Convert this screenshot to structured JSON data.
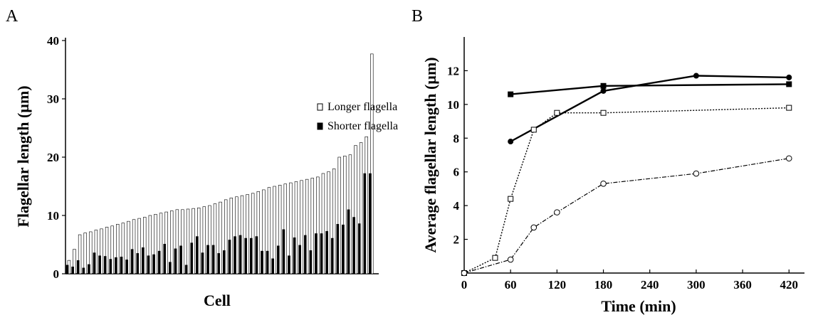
{
  "panels": [
    {
      "letter": "A",
      "chart_data": {
        "type": "bar",
        "xlabel": "Cell",
        "ylabel": "Flagellar length (µm)",
        "ylim": [
          0,
          40
        ],
        "yticks": [
          "0",
          "10",
          "20",
          "30",
          "40"
        ],
        "legend_position": "top-right",
        "series": [
          {
            "name": "Longer flagella",
            "fill": "#ffffff",
            "values": [
              2.3,
              4.2,
              6.7,
              7.0,
              7.2,
              7.5,
              7.7,
              8.0,
              8.2,
              8.5,
              8.7,
              9.0,
              9.3,
              9.5,
              9.7,
              10.0,
              10.2,
              10.4,
              10.6,
              10.8,
              11.0,
              11.0,
              11.1,
              11.2,
              11.3,
              11.5,
              11.7,
              12.0,
              12.3,
              12.7,
              13.0,
              13.2,
              13.4,
              13.6,
              13.8,
              14.1,
              14.4,
              14.8,
              15.0,
              15.2,
              15.4,
              15.6,
              15.8,
              16.0,
              16.2,
              16.4,
              16.6,
              17.2,
              17.5,
              18.0,
              20.0,
              20.2,
              20.4,
              22.0,
              22.5,
              23.5,
              37.7
            ]
          },
          {
            "name": "Shorter flagella",
            "fill": "#000000",
            "values": [
              1.5,
              1.2,
              2.3,
              1.0,
              1.6,
              3.6,
              3.1,
              3.0,
              2.5,
              2.8,
              2.9,
              2.4,
              4.2,
              3.5,
              4.5,
              3.1,
              3.3,
              3.9,
              5.1,
              2.0,
              4.3,
              4.8,
              1.5,
              5.3,
              6.4,
              3.6,
              4.9,
              4.9,
              3.5,
              4.0,
              5.8,
              6.4,
              6.6,
              6.1,
              6.1,
              6.4,
              3.9,
              3.9,
              2.6,
              4.8,
              7.6,
              3.1,
              6.2,
              4.9,
              6.6,
              4.0,
              6.9,
              6.9,
              7.3,
              6.1,
              8.5,
              8.4,
              11.0,
              9.7,
              8.6,
              17.2,
              17.2
            ]
          }
        ]
      }
    },
    {
      "letter": "B",
      "chart_data": {
        "type": "line",
        "xlabel": "Time (min)",
        "ylabel": "Average flagellar length (µm)",
        "xlim": [
          0,
          440
        ],
        "ylim": [
          0,
          14
        ],
        "xticks": [
          "0",
          "60",
          "120",
          "180",
          "240",
          "300",
          "360",
          "420"
        ],
        "yticks": [
          "2",
          "4",
          "6",
          "8",
          "10",
          "12"
        ],
        "series": [
          {
            "marker": "filled-square",
            "line": "solid-thick",
            "x": [
              60,
              180,
              420
            ],
            "y": [
              10.6,
              11.1,
              11.2
            ]
          },
          {
            "marker": "filled-circle",
            "line": "solid-thick",
            "x": [
              60,
              180,
              300,
              420
            ],
            "y": [
              7.8,
              10.8,
              11.7,
              11.6
            ]
          },
          {
            "marker": "open-square",
            "line": "dotted",
            "x": [
              0,
              40,
              60,
              90,
              120,
              180,
              420
            ],
            "y": [
              0,
              0.9,
              4.4,
              8.5,
              9.5,
              9.5,
              9.8
            ]
          },
          {
            "marker": "open-circle",
            "line": "dash-dot",
            "x": [
              0,
              60,
              90,
              120,
              180,
              300,
              420
            ],
            "y": [
              0,
              0.8,
              2.7,
              3.6,
              5.3,
              5.9,
              6.8
            ]
          }
        ]
      }
    }
  ]
}
